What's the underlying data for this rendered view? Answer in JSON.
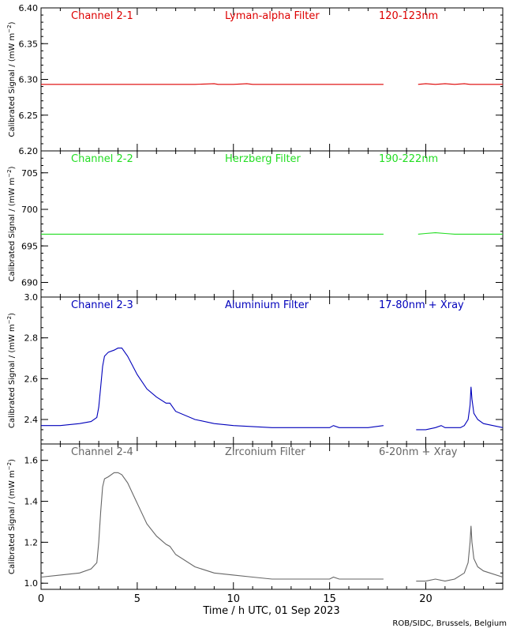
{
  "footer_credit": "ROB/SIDC, Brussels, Belgium",
  "x_axis": {
    "label": "Time / h UTC, 01 Sep 2023",
    "range": [
      0,
      24
    ],
    "major_ticks": [
      0,
      5,
      10,
      15,
      20
    ],
    "tick_labels": [
      "0",
      "5",
      "10",
      "15",
      "20"
    ],
    "minor_step": 1
  },
  "ylabel_text": "Calibrated Signal / (mW m",
  "ylabel_sup": "−2",
  "ylabel_close": ")",
  "chart_data": [
    {
      "type": "line",
      "channel": "Channel 2-1",
      "filter": "Lyman-alpha Filter",
      "band": "120-123nm",
      "color": "#dd0000",
      "ylim": [
        6.2,
        6.4
      ],
      "yticks": [
        6.2,
        6.25,
        6.3,
        6.35,
        6.4
      ],
      "ytick_labels": [
        "6.20",
        "6.25",
        "6.30",
        "6.35",
        "6.40"
      ],
      "minor_step": 0.01,
      "series": [
        {
          "x": [
            0,
            2,
            4,
            6,
            8,
            9,
            9.2,
            10,
            10.7,
            11,
            13,
            15,
            16,
            17.8
          ],
          "y": [
            6.293,
            6.293,
            6.293,
            6.293,
            6.293,
            6.294,
            6.293,
            6.293,
            6.294,
            6.293,
            6.293,
            6.293,
            6.293,
            6.293
          ]
        },
        {
          "x": [
            19.6,
            20,
            20.5,
            21,
            21.5,
            22,
            22.3,
            22.6,
            23,
            24
          ],
          "y": [
            6.293,
            6.294,
            6.293,
            6.294,
            6.293,
            6.294,
            6.293,
            6.293,
            6.293,
            6.293
          ]
        }
      ]
    },
    {
      "type": "line",
      "channel": "Channel 2-2",
      "filter": "Herzberg Filter",
      "band": "190-222nm",
      "color": "#22dd22",
      "ylim": [
        688,
        708
      ],
      "yticks": [
        690,
        695,
        700,
        705
      ],
      "ytick_labels": [
        "690",
        "695",
        "700",
        "705"
      ],
      "minor_step": 1,
      "series": [
        {
          "x": [
            0,
            2,
            4,
            6,
            8,
            10,
            12,
            14,
            16,
            17.8
          ],
          "y": [
            696.6,
            696.6,
            696.6,
            696.6,
            696.6,
            696.6,
            696.6,
            696.6,
            696.6,
            696.6
          ]
        },
        {
          "x": [
            19.6,
            20,
            20.5,
            21,
            21.5,
            22,
            23,
            24
          ],
          "y": [
            696.6,
            696.7,
            696.8,
            696.7,
            696.6,
            696.6,
            696.6,
            696.6
          ]
        }
      ]
    },
    {
      "type": "line",
      "channel": "Channel 2-3",
      "filter": "Aluminium Filter",
      "band": "17-80nm + Xray",
      "color": "#0000bb",
      "ylim": [
        2.28,
        3.0
      ],
      "yticks": [
        2.4,
        2.6,
        2.8,
        3.0
      ],
      "ytick_labels": [
        "2.4",
        "2.6",
        "2.8",
        "3.0"
      ],
      "minor_step": 0.05,
      "series": [
        {
          "x": [
            0,
            1,
            2,
            2.6,
            2.9,
            3.0,
            3.1,
            3.2,
            3.3,
            3.5,
            3.8,
            4.0,
            4.2,
            4.5,
            5.0,
            5.5,
            6.0,
            6.5,
            6.7,
            7.0,
            8.0,
            9.0,
            10.0,
            12.0,
            14.0,
            15.0,
            15.2,
            15.5,
            17.0,
            17.8
          ],
          "y": [
            2.37,
            2.37,
            2.38,
            2.39,
            2.41,
            2.46,
            2.56,
            2.66,
            2.71,
            2.73,
            2.74,
            2.75,
            2.75,
            2.71,
            2.62,
            2.55,
            2.51,
            2.48,
            2.48,
            2.44,
            2.4,
            2.38,
            2.37,
            2.36,
            2.36,
            2.36,
            2.37,
            2.36,
            2.36,
            2.37
          ]
        },
        {
          "x": [
            19.5,
            20.0,
            20.5,
            20.8,
            21.0,
            21.5,
            21.8,
            22.0,
            22.2,
            22.3,
            22.35,
            22.4,
            22.5,
            22.7,
            23.0,
            24.0
          ],
          "y": [
            2.35,
            2.35,
            2.36,
            2.37,
            2.36,
            2.36,
            2.36,
            2.37,
            2.4,
            2.47,
            2.56,
            2.5,
            2.43,
            2.4,
            2.38,
            2.36
          ]
        }
      ]
    },
    {
      "type": "line",
      "channel": "Channel 2-4",
      "filter": "Zirconium Filter",
      "band": "6-20nm + Xray",
      "color": "#666666",
      "ylim": [
        0.97,
        1.68
      ],
      "yticks": [
        1.0,
        1.2,
        1.4,
        1.6
      ],
      "ytick_labels": [
        "1.0",
        "1.2",
        "1.4",
        "1.6"
      ],
      "minor_step": 0.05,
      "series": [
        {
          "x": [
            0,
            1,
            2,
            2.6,
            2.9,
            3.0,
            3.1,
            3.2,
            3.3,
            3.5,
            3.8,
            4.0,
            4.2,
            4.5,
            5.0,
            5.5,
            6.0,
            6.5,
            6.7,
            7.0,
            8.0,
            9.0,
            10.0,
            11.0,
            12.0,
            14.0,
            15.0,
            15.2,
            15.5,
            17.0,
            17.8
          ],
          "y": [
            1.03,
            1.04,
            1.05,
            1.07,
            1.1,
            1.2,
            1.35,
            1.47,
            1.51,
            1.52,
            1.54,
            1.54,
            1.53,
            1.49,
            1.39,
            1.29,
            1.23,
            1.19,
            1.18,
            1.14,
            1.08,
            1.05,
            1.04,
            1.03,
            1.02,
            1.02,
            1.02,
            1.03,
            1.02,
            1.02,
            1.02
          ]
        },
        {
          "x": [
            19.5,
            20.0,
            20.5,
            21.0,
            21.5,
            22.0,
            22.2,
            22.3,
            22.35,
            22.4,
            22.5,
            22.7,
            23.0,
            24.0
          ],
          "y": [
            1.01,
            1.01,
            1.02,
            1.01,
            1.02,
            1.05,
            1.1,
            1.2,
            1.28,
            1.2,
            1.12,
            1.08,
            1.06,
            1.03
          ]
        }
      ]
    }
  ]
}
